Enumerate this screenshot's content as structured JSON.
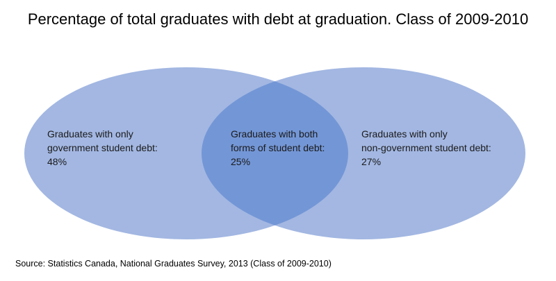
{
  "title": "Percentage of total graduates with debt at graduation. Class of 2009-2010",
  "colors": {
    "circle_fill": "#a3b7e2",
    "overlap_fill": "#7396d6"
  },
  "regions": {
    "left": {
      "line1": "Graduates with only",
      "line2": "government student debt:",
      "value": "48%"
    },
    "overlap": {
      "line1": "Graduates with both",
      "line2": "forms of student debt:",
      "value": "25%"
    },
    "right": {
      "line1": "Graduates with only",
      "line2": "non-government student debt:",
      "value": "27%"
    }
  },
  "source": "Source: Statistics Canada, National Graduates Survey, 2013 (Class of 2009-2010)"
}
